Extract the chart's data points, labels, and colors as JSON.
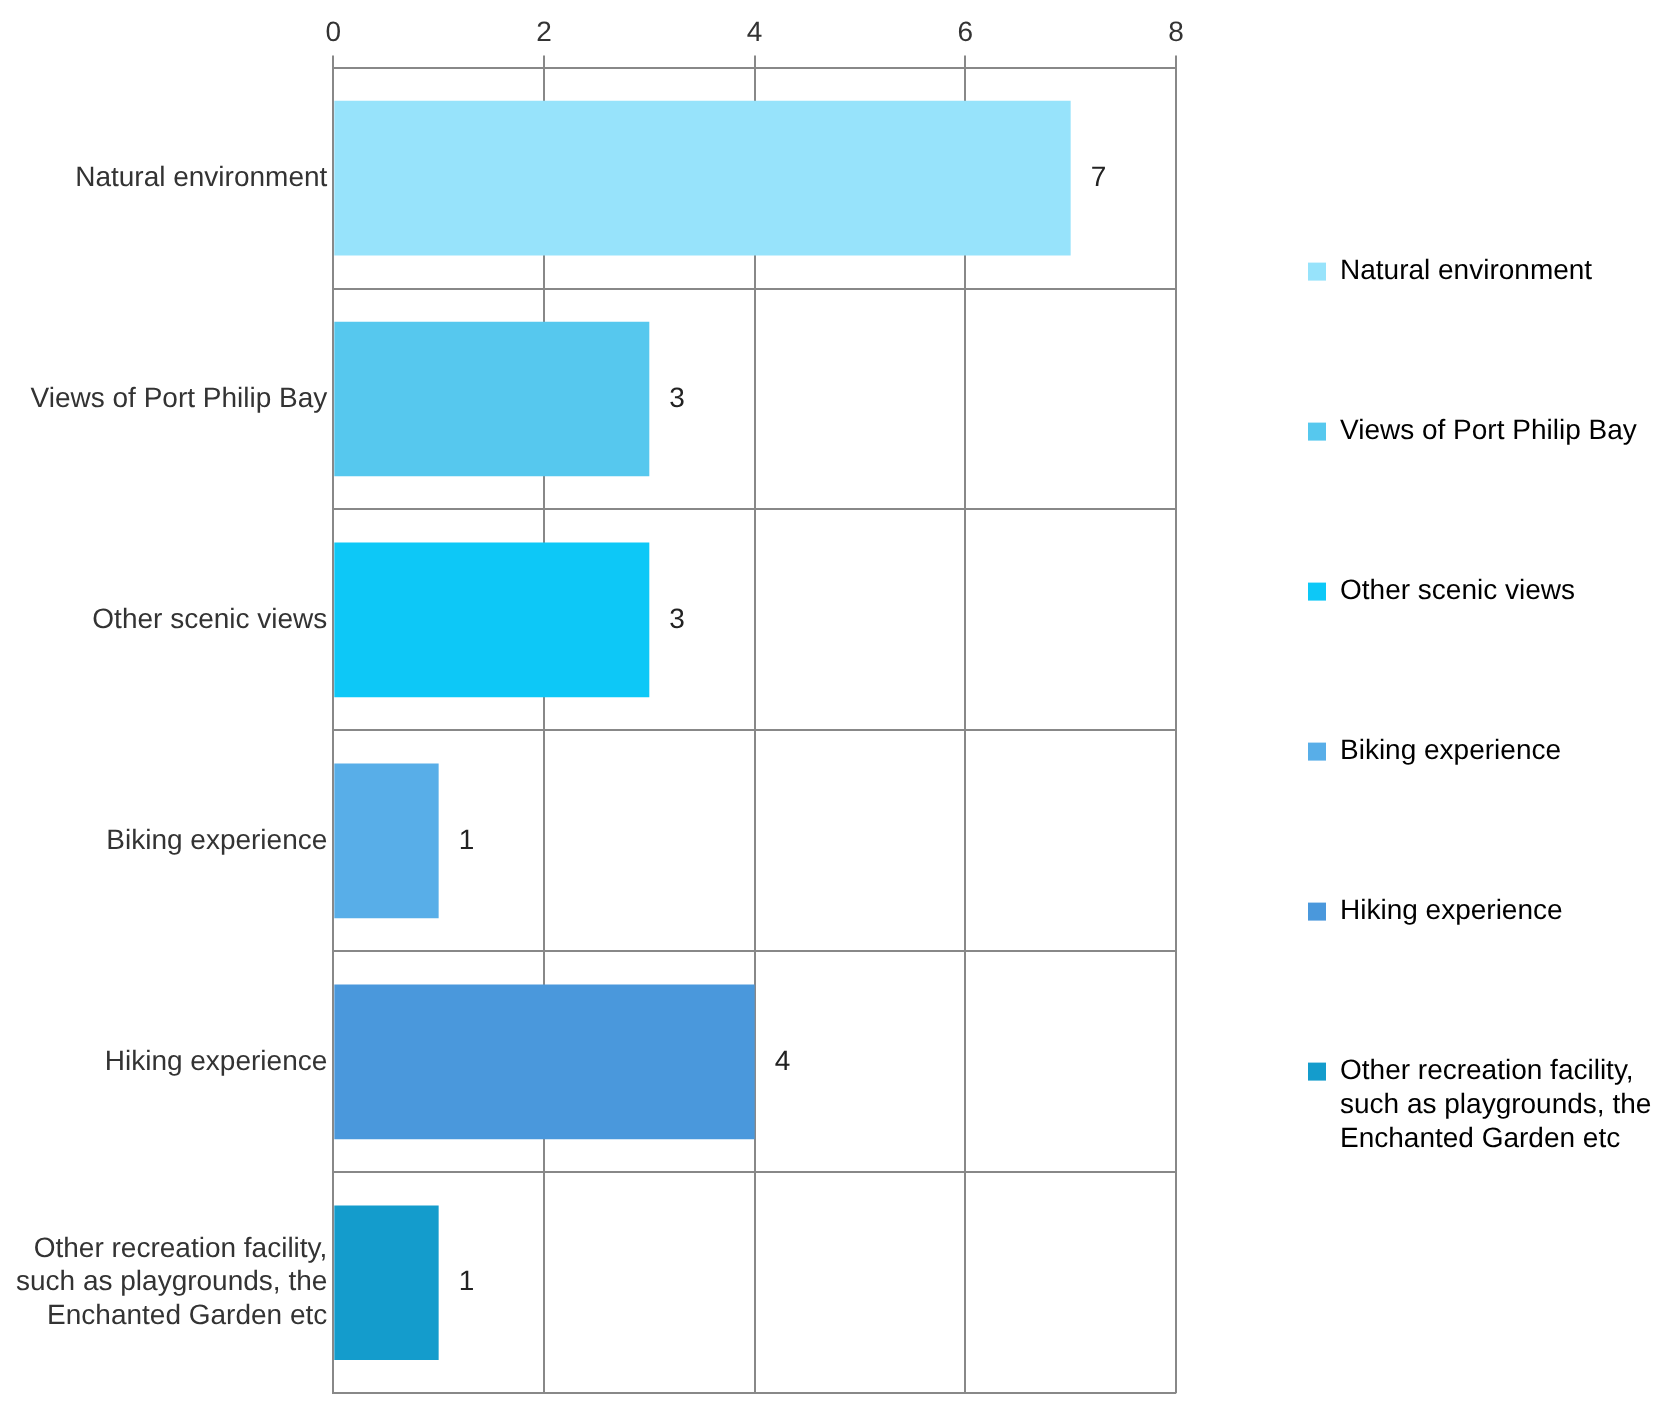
{
  "chart_data": {
    "type": "bar",
    "orientation": "horizontal",
    "categories": [
      "Natural environment",
      "Views of Port Philip Bay",
      "Other scenic views",
      "Biking experience",
      "Hiking experience",
      "Other recreation facility, such as playgrounds, the Enchanted Garden etc"
    ],
    "series": [
      {
        "name": "Natural environment",
        "color": "#97e3fb",
        "values": [
          7,
          null,
          null,
          null,
          null,
          null
        ]
      },
      {
        "name": "Views of Port Philip Bay",
        "color": "#56c8ee",
        "values": [
          null,
          3,
          null,
          null,
          null,
          null
        ]
      },
      {
        "name": "Other scenic views",
        "color": "#0dc8f7",
        "values": [
          null,
          null,
          3,
          null,
          null,
          null
        ]
      },
      {
        "name": "Biking experience",
        "color": "#58aee8",
        "values": [
          null,
          null,
          null,
          1,
          null,
          null
        ]
      },
      {
        "name": "Hiking experience",
        "color": "#4a98dc",
        "values": [
          null,
          null,
          null,
          null,
          4,
          null
        ]
      },
      {
        "name": "Other recreation facility, such as playgrounds, the Enchanted Garden etc",
        "color": "#149ccc",
        "values": [
          null,
          null,
          null,
          null,
          null,
          1
        ]
      }
    ],
    "xlim": [
      0,
      8
    ],
    "xticks": [
      0,
      2,
      4,
      6,
      8
    ],
    "grid": true,
    "legend": "right",
    "data_labels": true
  }
}
